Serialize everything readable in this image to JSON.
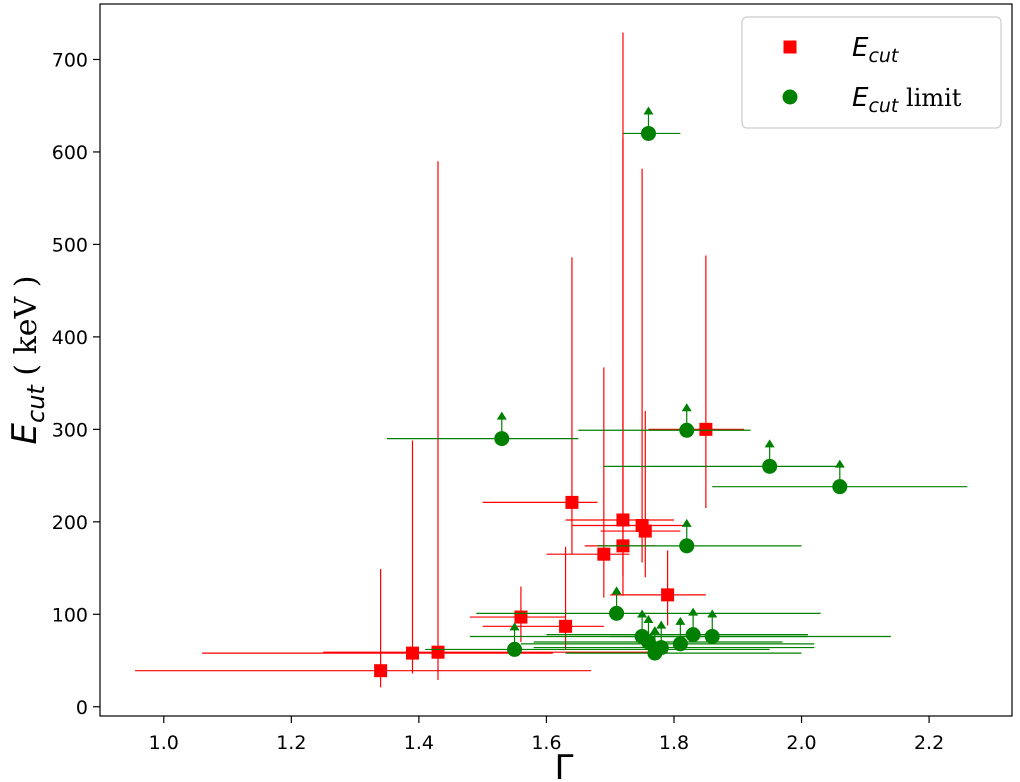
{
  "chart_data": {
    "type": "scatter",
    "title": "",
    "xlabel": "Γ",
    "ylabel": "E_cut ( keV )",
    "ylabel_parts": {
      "sym": "E",
      "sub": "cut",
      "unit": " ( keV )"
    },
    "xlim": [
      0.9,
      2.33
    ],
    "ylim": [
      -10,
      760
    ],
    "xticks": [
      1.0,
      1.2,
      1.4,
      1.6,
      1.8,
      2.0,
      2.2
    ],
    "xtick_labels": [
      "1.0",
      "1.2",
      "1.4",
      "1.6",
      "1.8",
      "2.0",
      "2.2"
    ],
    "yticks": [
      0,
      100,
      200,
      300,
      400,
      500,
      600,
      700
    ],
    "ytick_labels": [
      "0",
      "100",
      "200",
      "300",
      "400",
      "500",
      "600",
      "700"
    ],
    "grid": false,
    "legend_position": "top-right",
    "series": [
      {
        "name": "E_cut",
        "legend_label": {
          "sym": "E",
          "sub": "cut",
          "suffix": ""
        },
        "marker": "square",
        "color": "#ff0000",
        "points": [
          {
            "x": 1.34,
            "y": 39,
            "xerr": [
              0.385,
              0.33
            ],
            "yerr": [
              18,
              110
            ]
          },
          {
            "x": 1.39,
            "y": 58,
            "xerr": [
              0.33,
              0.22
            ],
            "yerr": [
              22,
              230
            ]
          },
          {
            "x": 1.43,
            "y": 59,
            "xerr": [
              0.18,
              0.36
            ],
            "yerr": [
              30,
              531
            ]
          },
          {
            "x": 1.56,
            "y": 97,
            "xerr": [
              0.08,
              0.07
            ],
            "yerr": [
              27,
              33
            ]
          },
          {
            "x": 1.63,
            "y": 87,
            "xerr": [
              0.13,
              0.06
            ],
            "yerr": [
              25,
              86
            ]
          },
          {
            "x": 1.64,
            "y": 221,
            "xerr": [
              0.14,
              0.04
            ],
            "yerr": [
              56,
              265
            ]
          },
          {
            "x": 1.69,
            "y": 165,
            "xerr": [
              0.09,
              0.04
            ],
            "yerr": [
              47,
              202
            ]
          },
          {
            "x": 1.72,
            "y": 174,
            "xerr": [
              0.06,
              0.05
            ],
            "yerr": [
              54,
              555
            ]
          },
          {
            "x": 1.72,
            "y": 202,
            "xerr": [
              0.09,
              0.08
            ],
            "yerr": [
              60,
              412
            ]
          },
          {
            "x": 1.75,
            "y": 196,
            "xerr": [
              0.11,
              0.07
            ],
            "yerr": [
              40,
              386
            ]
          },
          {
            "x": 1.755,
            "y": 190,
            "xerr": [
              0.07,
              0.055
            ],
            "yerr": [
              50,
              130
            ]
          },
          {
            "x": 1.79,
            "y": 121,
            "xerr": [
              0.09,
              0.06
            ],
            "yerr": [
              33,
              48
            ]
          },
          {
            "x": 1.85,
            "y": 300,
            "xerr": [
              0.09,
              0.06
            ],
            "yerr": [
              85,
              188
            ]
          }
        ]
      },
      {
        "name": "E_cut limit",
        "legend_label": {
          "sym": "E",
          "sub": "cut",
          "suffix": " limit"
        },
        "marker": "circle",
        "color": "#008000",
        "lower_limit_arrows": true,
        "points": [
          {
            "x": 1.53,
            "y": 290,
            "xerr": [
              0.18,
              0.12
            ]
          },
          {
            "x": 1.55,
            "y": 62,
            "xerr": [
              0.14,
              0.4
            ]
          },
          {
            "x": 1.71,
            "y": 101,
            "xerr": [
              0.22,
              0.32
            ]
          },
          {
            "x": 1.75,
            "y": 76,
            "xerr": [
              0.27,
              0.39
            ]
          },
          {
            "x": 1.76,
            "y": 620,
            "xerr": [
              0.04,
              0.05
            ]
          },
          {
            "x": 1.76,
            "y": 70,
            "xerr": [
              0.18,
              0.21
            ]
          },
          {
            "x": 1.77,
            "y": 58,
            "xerr": [
              0.14,
              0.23
            ]
          },
          {
            "x": 1.78,
            "y": 64,
            "xerr": [
              0.2,
              0.24
            ]
          },
          {
            "x": 1.81,
            "y": 68,
            "xerr": [
              0.25,
              0.21
            ]
          },
          {
            "x": 1.82,
            "y": 174,
            "xerr": [
              0.14,
              0.18
            ]
          },
          {
            "x": 1.82,
            "y": 299,
            "xerr": [
              0.17,
              0.1
            ]
          },
          {
            "x": 1.83,
            "y": 78,
            "xerr": [
              0.23,
              0.18
            ]
          },
          {
            "x": 1.86,
            "y": 76,
            "xerr": [
              0.16,
              0.15
            ]
          },
          {
            "x": 1.95,
            "y": 260,
            "xerr": [
              0.26,
              0.11
            ]
          },
          {
            "x": 2.06,
            "y": 238,
            "xerr": [
              0.2,
              0.2
            ]
          }
        ]
      }
    ]
  }
}
